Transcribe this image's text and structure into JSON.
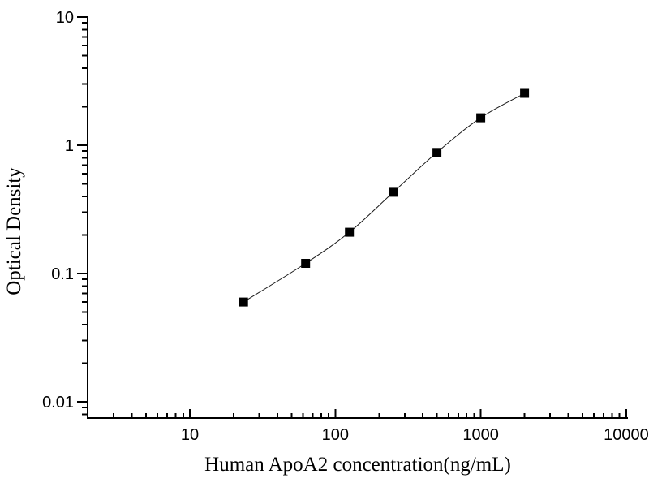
{
  "figure": {
    "background_color": "#ffffff",
    "axis_color": "#000000"
  },
  "chart_data": {
    "type": "scatter",
    "title": "",
    "xlabel": "Human ApoA2 concentration(ng/mL)",
    "ylabel": "Optical Density",
    "x_scale": "log",
    "y_scale": "log",
    "xlim": [
      2,
      10000
    ],
    "ylim": [
      0.0077,
      10
    ],
    "x_ticks": [
      10,
      100,
      1000,
      10000
    ],
    "x_tick_labels": [
      "10",
      "100",
      "1000",
      "10000"
    ],
    "y_ticks": [
      10,
      1,
      0.1,
      0.01
    ],
    "y_tick_labels": [
      "10",
      "1",
      "0.1",
      "0.01"
    ],
    "grid": false,
    "legend": null,
    "frame": "left-bottom-axes-only",
    "series": [
      {
        "name": "standard-curve",
        "marker": "filled-square",
        "marker_color": "#000000",
        "line_color": "#1a1a1a",
        "line_style": "solid-thin",
        "x": [
          23.4,
          62.5,
          125,
          250,
          500,
          1000,
          2000
        ],
        "y": [
          0.06,
          0.12,
          0.21,
          0.43,
          0.88,
          1.64,
          2.54
        ]
      }
    ]
  }
}
